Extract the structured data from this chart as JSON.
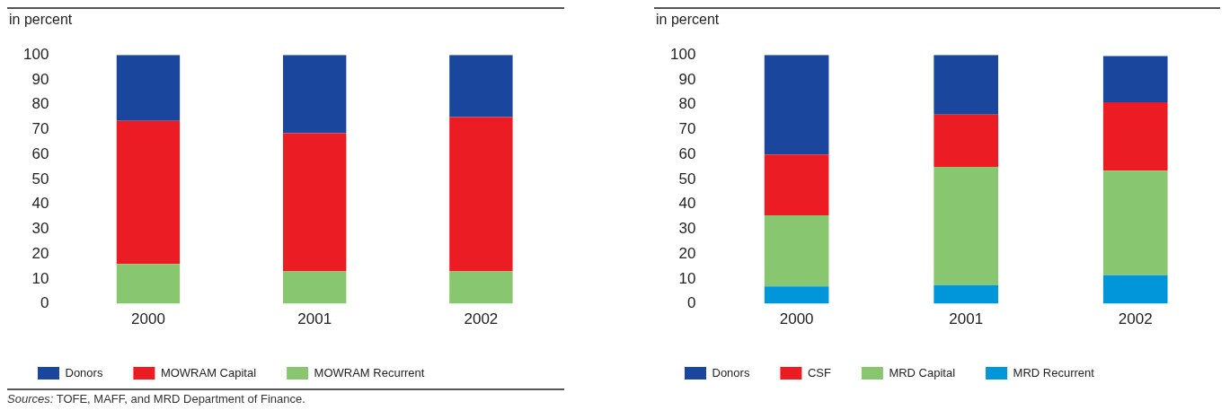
{
  "chart_data": [
    {
      "type": "bar",
      "stacked": true,
      "ylabel": "in percent",
      "categories": [
        "2000",
        "2001",
        "2002"
      ],
      "ylim": [
        0,
        100
      ],
      "yticks": [
        0,
        10,
        20,
        30,
        40,
        50,
        60,
        70,
        80,
        90,
        100
      ],
      "grid": false,
      "legend": "bottom",
      "series": [
        {
          "name": "MOWRAM Recurrent",
          "color": "#88c66f",
          "values": [
            16,
            13,
            13
          ]
        },
        {
          "name": "MOWRAM Capital",
          "color": "#ec1c24",
          "values": [
            57.5,
            55.5,
            62
          ]
        },
        {
          "name": "Donors",
          "color": "#1a479d",
          "values": [
            26.5,
            31.5,
            25
          ]
        }
      ],
      "annotations": [
        "Sources: TOFE, MAFF, and MRD Department of Finance."
      ]
    },
    {
      "type": "bar",
      "stacked": true,
      "ylabel": "in percent",
      "categories": [
        "2000",
        "2001",
        "2002"
      ],
      "ylim": [
        0,
        100
      ],
      "yticks": [
        0,
        10,
        20,
        30,
        40,
        50,
        60,
        70,
        80,
        90,
        100
      ],
      "grid": false,
      "legend": "bottom",
      "series": [
        {
          "name": "MRD Recurrent",
          "color": "#0096d9",
          "values": [
            7,
            7.5,
            11.5
          ]
        },
        {
          "name": "MRD Capital",
          "color": "#88c66f",
          "values": [
            28.5,
            47.5,
            42
          ]
        },
        {
          "name": "CSF",
          "color": "#ec1c24",
          "values": [
            24.5,
            21,
            27.5
          ]
        },
        {
          "name": "Donors",
          "color": "#1a479d",
          "values": [
            40,
            24,
            18.5
          ]
        }
      ]
    }
  ]
}
